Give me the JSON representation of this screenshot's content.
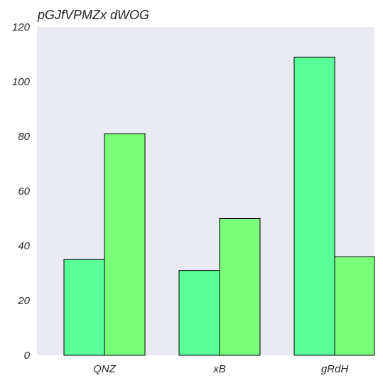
{
  "chart_data": {
    "type": "bar",
    "title": "pGJfVPMZx dWOG",
    "xlabel": "",
    "ylabel": "",
    "categories": [
      "QNZ",
      "xB",
      "gRdH"
    ],
    "series": [
      {
        "values": [
          35,
          31,
          109
        ],
        "color": "#5aff9a"
      },
      {
        "values": [
          81,
          50,
          36
        ],
        "color": "#7aff7a"
      }
    ],
    "ylim": [
      0,
      120
    ],
    "yticks": [
      0,
      20,
      40,
      60,
      80,
      100,
      120
    ],
    "grid": false,
    "background": "#eaeaf2",
    "bar_edge_color": "#000000"
  }
}
